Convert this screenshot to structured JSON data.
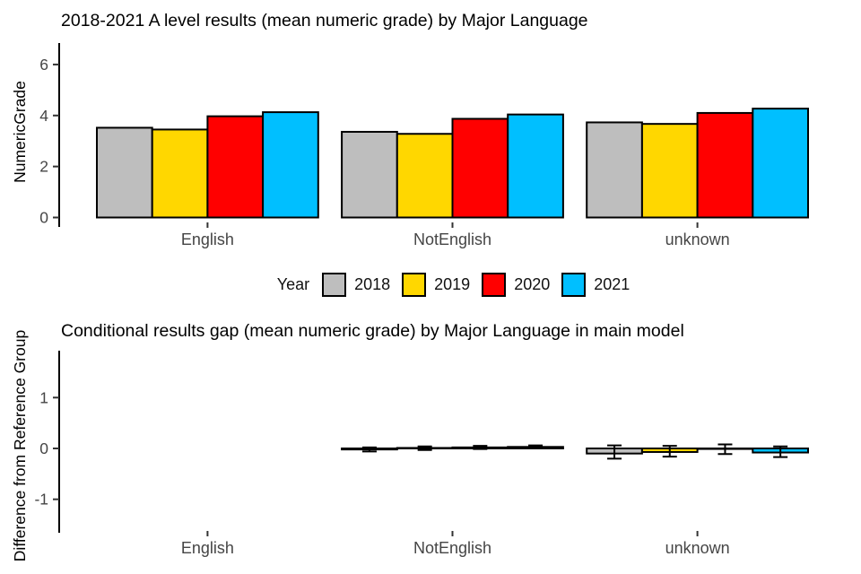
{
  "page": {
    "background": "#ffffff"
  },
  "chart_data": [
    {
      "type": "bar",
      "title": "2018-2021 A level results (mean numeric grade) by Major Language",
      "ylabel": "NumericGrade",
      "xlabel": "",
      "categories": [
        "English",
        "NotEnglish",
        "unknown"
      ],
      "yticks": [
        0,
        2,
        4,
        6
      ],
      "ylim": [
        0,
        6.83
      ],
      "grid": false,
      "legend_title": "Year",
      "legend_position": "bottom",
      "bar_outline_color": "#000000",
      "axis_text_color": "#454545",
      "series": [
        {
          "name": "2018",
          "color": "#BEBEBE",
          "values": [
            3.52,
            3.36,
            3.73
          ]
        },
        {
          "name": "2019",
          "color": "#FFD700",
          "values": [
            3.45,
            3.28,
            3.67
          ]
        },
        {
          "name": "2020",
          "color": "#FF0000",
          "values": [
            3.97,
            3.87,
            4.1
          ]
        },
        {
          "name": "2021",
          "color": "#00BFFF",
          "values": [
            4.13,
            4.04,
            4.27
          ]
        }
      ]
    },
    {
      "type": "bar",
      "title": "Conditional results gap (mean numeric grade) by Major Language in main model",
      "ylabel": "Difference from Reference Group",
      "xlabel": "",
      "categories": [
        "English",
        "NotEnglish",
        "unknown"
      ],
      "yticks": [
        1,
        0,
        -1
      ],
      "ylim": [
        -1.66,
        1.92
      ],
      "grid": false,
      "note": "English is the reference group: no bars or error bars drawn for it",
      "bar_outline_color": "#000000",
      "axis_text_color": "#454545",
      "series": [
        {
          "name": "2018",
          "color": "#BEBEBE",
          "values": [
            null,
            -0.02,
            -0.1
          ],
          "ci_low": [
            null,
            -0.06,
            -0.2
          ],
          "ci_high": [
            null,
            0.02,
            0.06
          ]
        },
        {
          "name": "2019",
          "color": "#FFD700",
          "values": [
            null,
            0.01,
            -0.07
          ],
          "ci_low": [
            null,
            -0.03,
            -0.16
          ],
          "ci_high": [
            null,
            0.04,
            0.05
          ]
        },
        {
          "name": "2020",
          "color": "#FF0000",
          "values": [
            null,
            0.02,
            -0.01
          ],
          "ci_low": [
            null,
            -0.01,
            -0.11
          ],
          "ci_high": [
            null,
            0.05,
            0.08
          ]
        },
        {
          "name": "2021",
          "color": "#00BFFF",
          "values": [
            null,
            0.03,
            -0.08
          ],
          "ci_low": [
            null,
            0.0,
            -0.17
          ],
          "ci_high": [
            null,
            0.06,
            0.04
          ]
        }
      ]
    }
  ]
}
